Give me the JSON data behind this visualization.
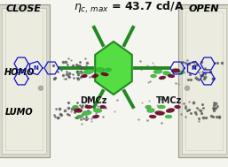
{
  "title_text": "$\\eta_{c,\\, max}$ = 43.7 cd/A",
  "close_label": "CLOSE",
  "open_label": "OPEN",
  "homo_label": "HOMO",
  "lumo_label": "LUMO",
  "dmcz_label": "DMCz",
  "tmcz_label": "TMCz",
  "bg_color": "#f5f5f0",
  "title_color": "#111111",
  "close_open_color": "#000000",
  "homo_lumo_color": "#000000",
  "green_core": "#55dd44",
  "green_bond": "#228822",
  "blue_carbazole": "#1111cc",
  "door_frame_color": "#d8d8cc",
  "door_panel_color": "#ebebdf",
  "door_edge_color": "#aaaaaa",
  "orbital_green": "#33bb33",
  "orbital_dark": "#660022"
}
